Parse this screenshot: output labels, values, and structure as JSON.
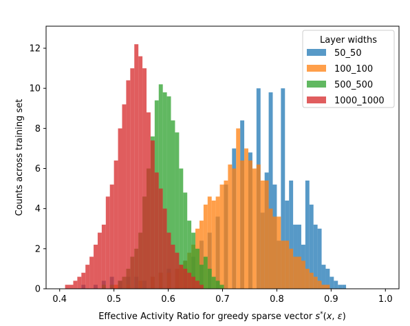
{
  "chart_data": {
    "type": "histogram",
    "xlabel": "Effective Activity Ratio for greedy sparse vector s*(x, ε)",
    "ylabel": "Counts across training set",
    "xlim": [
      0.375,
      1.025
    ],
    "ylim": [
      0,
      13.1
    ],
    "xticks": [
      0.4,
      0.5,
      0.6,
      0.7,
      0.8,
      0.9,
      1.0
    ],
    "xtick_labels": [
      "0.4",
      "0.5",
      "0.6",
      "0.7",
      "0.8",
      "0.9",
      "1.0"
    ],
    "yticks": [
      0,
      2,
      4,
      6,
      8,
      10,
      12
    ],
    "ytick_labels": [
      "0",
      "2",
      "4",
      "6",
      "8",
      "10",
      "12"
    ],
    "grid": false,
    "legend": {
      "title": "Layer widths",
      "placement": "upper right"
    },
    "series": [
      {
        "name": "50_50",
        "color": "#1f77b4",
        "bin_width": 0.0075,
        "bins": [
          [
            0.44,
            0.2
          ],
          [
            0.4625,
            0.2
          ],
          [
            0.4775,
            0.4
          ],
          [
            0.4925,
            0.6
          ],
          [
            0.5075,
            0.4
          ],
          [
            0.5225,
            0.6
          ],
          [
            0.5375,
            0.6
          ],
          [
            0.5525,
            0.4
          ],
          [
            0.5675,
            0.6
          ],
          [
            0.5825,
            0.8
          ],
          [
            0.5975,
            1.0
          ],
          [
            0.6125,
            1.0
          ],
          [
            0.6275,
            1.4
          ],
          [
            0.6425,
            1.6
          ],
          [
            0.6575,
            2.4
          ],
          [
            0.6725,
            2.8
          ],
          [
            0.6875,
            3.6
          ],
          [
            0.7025,
            5.2
          ],
          [
            0.7175,
            7.0
          ],
          [
            0.7325,
            8.4
          ],
          [
            0.7475,
            6.8
          ],
          [
            0.7625,
            10.0
          ],
          [
            0.77,
            3.8
          ],
          [
            0.7775,
            5.8
          ],
          [
            0.785,
            9.8
          ],
          [
            0.7925,
            5.2
          ],
          [
            0.8,
            2.4
          ],
          [
            0.8075,
            10.0
          ],
          [
            0.815,
            4.4
          ],
          [
            0.8225,
            5.4
          ],
          [
            0.83,
            3.2
          ],
          [
            0.8375,
            3.2
          ],
          [
            0.845,
            2.2
          ],
          [
            0.8525,
            5.4
          ],
          [
            0.86,
            4.2
          ],
          [
            0.8675,
            3.2
          ],
          [
            0.875,
            3.0
          ],
          [
            0.8825,
            1.2
          ],
          [
            0.89,
            1.0
          ],
          [
            0.8975,
            0.6
          ],
          [
            0.905,
            0.4
          ],
          [
            0.9125,
            0.2
          ],
          [
            0.92,
            0.2
          ]
        ]
      },
      {
        "name": "100_100",
        "color": "#ff7f0e",
        "bin_width": 0.0075,
        "bins": [
          [
            0.5,
            0.2
          ],
          [
            0.5225,
            0.2
          ],
          [
            0.545,
            0.4
          ],
          [
            0.5675,
            0.6
          ],
          [
            0.5825,
            0.8
          ],
          [
            0.5975,
            0.8
          ],
          [
            0.6125,
            1.0
          ],
          [
            0.62,
            1.2
          ],
          [
            0.6275,
            1.4
          ],
          [
            0.635,
            1.8
          ],
          [
            0.6425,
            2.2
          ],
          [
            0.65,
            3.0
          ],
          [
            0.6575,
            3.4
          ],
          [
            0.665,
            4.2
          ],
          [
            0.6725,
            4.6
          ],
          [
            0.68,
            4.4
          ],
          [
            0.6875,
            4.6
          ],
          [
            0.695,
            5.2
          ],
          [
            0.7025,
            5.4
          ],
          [
            0.71,
            6.2
          ],
          [
            0.7175,
            6.0
          ],
          [
            0.725,
            8.0
          ],
          [
            0.7325,
            6.4
          ],
          [
            0.74,
            7.0
          ],
          [
            0.7475,
            6.4
          ],
          [
            0.755,
            6.0
          ],
          [
            0.7625,
            6.2
          ],
          [
            0.77,
            5.4
          ],
          [
            0.7775,
            5.4
          ],
          [
            0.785,
            4.0
          ],
          [
            0.7925,
            3.6
          ],
          [
            0.8,
            3.6
          ],
          [
            0.8075,
            2.4
          ],
          [
            0.815,
            2.4
          ],
          [
            0.8225,
            2.0
          ],
          [
            0.83,
            1.6
          ],
          [
            0.8375,
            1.6
          ],
          [
            0.845,
            1.4
          ],
          [
            0.8525,
            1.0
          ],
          [
            0.86,
            0.8
          ],
          [
            0.8675,
            0.6
          ],
          [
            0.875,
            0.4
          ],
          [
            0.8825,
            0.2
          ],
          [
            0.89,
            0.2
          ]
        ]
      },
      {
        "name": "500_500",
        "color": "#2ca02c",
        "bin_width": 0.0075,
        "bins": [
          [
            0.4775,
            0.2
          ],
          [
            0.4925,
            0.2
          ],
          [
            0.5075,
            0.4
          ],
          [
            0.515,
            0.6
          ],
          [
            0.5225,
            1.0
          ],
          [
            0.53,
            1.6
          ],
          [
            0.5375,
            2.0
          ],
          [
            0.545,
            2.8
          ],
          [
            0.5525,
            4.6
          ],
          [
            0.56,
            6.0
          ],
          [
            0.5675,
            7.6
          ],
          [
            0.575,
            9.4
          ],
          [
            0.5825,
            10.2
          ],
          [
            0.59,
            9.8
          ],
          [
            0.5975,
            9.6
          ],
          [
            0.605,
            8.4
          ],
          [
            0.6125,
            7.8
          ],
          [
            0.62,
            6.0
          ],
          [
            0.6275,
            4.8
          ],
          [
            0.635,
            3.4
          ],
          [
            0.6425,
            2.8
          ],
          [
            0.65,
            2.0
          ],
          [
            0.6575,
            1.2
          ],
          [
            0.665,
            1.6
          ],
          [
            0.6725,
            1.0
          ],
          [
            0.68,
            0.6
          ],
          [
            0.6875,
            0.4
          ],
          [
            0.695,
            0.2
          ]
        ]
      },
      {
        "name": "1000_1000",
        "color": "#d62728",
        "bin_width": 0.0075,
        "bins": [
          [
            0.41,
            0.2
          ],
          [
            0.4175,
            0.2
          ],
          [
            0.425,
            0.4
          ],
          [
            0.4325,
            0.6
          ],
          [
            0.44,
            0.8
          ],
          [
            0.4475,
            1.2
          ],
          [
            0.455,
            1.6
          ],
          [
            0.4625,
            2.2
          ],
          [
            0.47,
            2.8
          ],
          [
            0.4775,
            3.2
          ],
          [
            0.485,
            4.6
          ],
          [
            0.4925,
            5.2
          ],
          [
            0.5,
            6.4
          ],
          [
            0.5075,
            8.0
          ],
          [
            0.515,
            9.2
          ],
          [
            0.5225,
            10.4
          ],
          [
            0.53,
            11.0
          ],
          [
            0.5375,
            12.2
          ],
          [
            0.545,
            11.6
          ],
          [
            0.5525,
            11.0
          ],
          [
            0.56,
            8.8
          ],
          [
            0.5675,
            7.4
          ],
          [
            0.575,
            5.8
          ],
          [
            0.5825,
            5.0
          ],
          [
            0.59,
            4.0
          ],
          [
            0.5975,
            2.8
          ],
          [
            0.605,
            2.2
          ],
          [
            0.6125,
            1.8
          ],
          [
            0.62,
            1.2
          ],
          [
            0.6275,
            1.0
          ],
          [
            0.635,
            0.8
          ],
          [
            0.6425,
            0.6
          ],
          [
            0.65,
            0.4
          ],
          [
            0.6575,
            0.2
          ]
        ]
      }
    ]
  }
}
